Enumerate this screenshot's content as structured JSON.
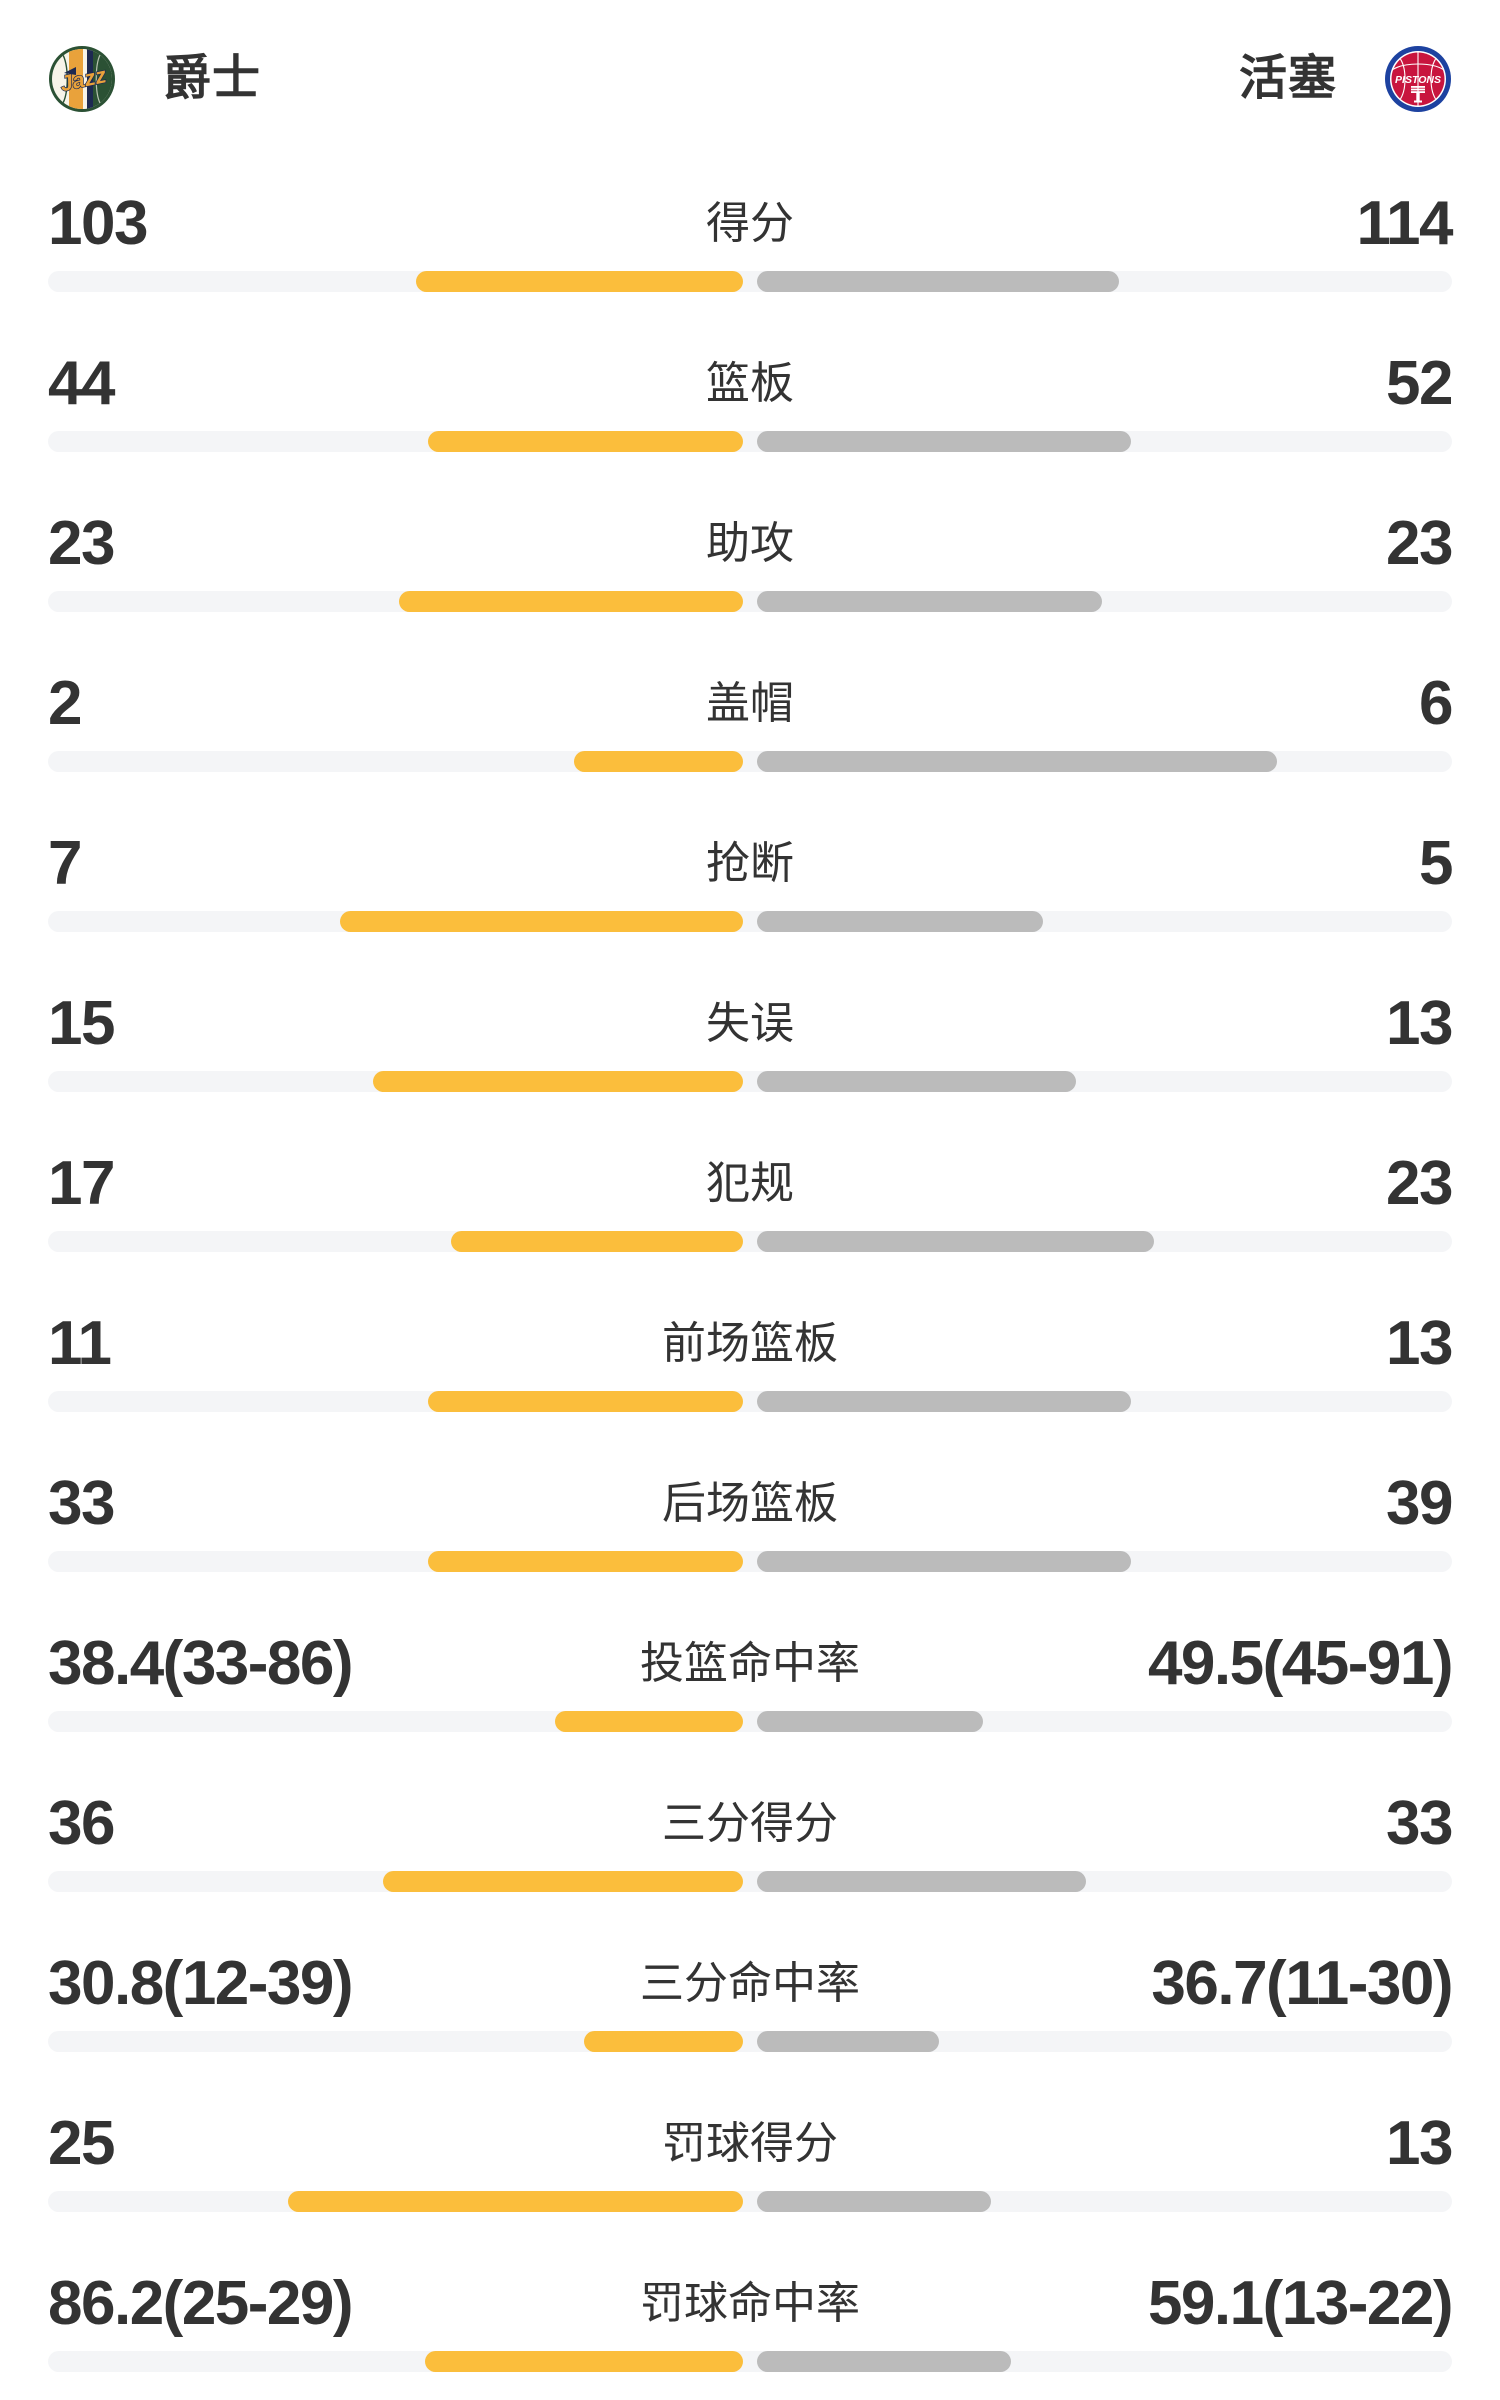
{
  "header": {
    "left_team": {
      "name": "爵士",
      "logo_text": "Jazz"
    },
    "right_team": {
      "name": "活塞",
      "logo_text": "PISTONS"
    }
  },
  "colors": {
    "left_bar": "#FBBE3C",
    "right_bar": "#BBBBBB",
    "bar_track": "#F4F5F7",
    "text": "#333333",
    "jazz_ring_green": "#2B5134",
    "jazz_gold": "#E9A23B",
    "jazz_navy": "#1D2951",
    "jazz_cream": "#F7F4E9",
    "pistons_red": "#C8153E",
    "pistons_blue": "#1D42A0"
  },
  "chart_data": {
    "type": "bar",
    "orientation": "horizontal-paired-from-center",
    "teams": [
      "爵士",
      "活塞"
    ],
    "legend_position": "top",
    "bar_scale_rule": {
      "count": "bar length = value / (left + right) of half track width",
      "rate": "bar length = value / (value + 100) of half track width"
    },
    "rows": [
      {
        "label": "得分",
        "mode": "count",
        "left": {
          "text": "103",
          "value": 103
        },
        "right": {
          "text": "114",
          "value": 114
        }
      },
      {
        "label": "篮板",
        "mode": "count",
        "left": {
          "text": "44",
          "value": 44
        },
        "right": {
          "text": "52",
          "value": 52
        }
      },
      {
        "label": "助攻",
        "mode": "count",
        "left": {
          "text": "23",
          "value": 23
        },
        "right": {
          "text": "23",
          "value": 23
        }
      },
      {
        "label": "盖帽",
        "mode": "count",
        "left": {
          "text": "2",
          "value": 2
        },
        "right": {
          "text": "6",
          "value": 6
        }
      },
      {
        "label": "抢断",
        "mode": "count",
        "left": {
          "text": "7",
          "value": 7
        },
        "right": {
          "text": "5",
          "value": 5
        }
      },
      {
        "label": "失误",
        "mode": "count",
        "left": {
          "text": "15",
          "value": 15
        },
        "right": {
          "text": "13",
          "value": 13
        }
      },
      {
        "label": "犯规",
        "mode": "count",
        "left": {
          "text": "17",
          "value": 17
        },
        "right": {
          "text": "23",
          "value": 23
        }
      },
      {
        "label": "前场篮板",
        "mode": "count",
        "left": {
          "text": "11",
          "value": 11
        },
        "right": {
          "text": "13",
          "value": 13
        }
      },
      {
        "label": "后场篮板",
        "mode": "count",
        "left": {
          "text": "33",
          "value": 33
        },
        "right": {
          "text": "39",
          "value": 39
        }
      },
      {
        "label": "投篮命中率",
        "mode": "rate",
        "left": {
          "text": "38.4(33-86)",
          "value": 38.4
        },
        "right": {
          "text": "49.5(45-91)",
          "value": 49.5
        }
      },
      {
        "label": "三分得分",
        "mode": "count",
        "left": {
          "text": "36",
          "value": 36
        },
        "right": {
          "text": "33",
          "value": 33
        }
      },
      {
        "label": "三分命中率",
        "mode": "rate",
        "left": {
          "text": "30.8(12-39)",
          "value": 30.8
        },
        "right": {
          "text": "36.7(11-30)",
          "value": 36.7
        }
      },
      {
        "label": "罚球得分",
        "mode": "count",
        "left": {
          "text": "25",
          "value": 25
        },
        "right": {
          "text": "13",
          "value": 13
        }
      },
      {
        "label": "罚球命中率",
        "mode": "rate",
        "left": {
          "text": "86.2(25-29)",
          "value": 86.2
        },
        "right": {
          "text": "59.1(13-22)",
          "value": 59.1
        }
      }
    ]
  }
}
